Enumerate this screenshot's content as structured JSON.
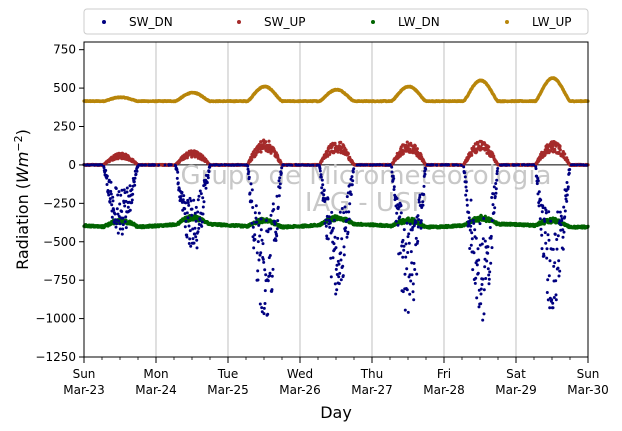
{
  "chart_data": {
    "type": "scatter",
    "title": "",
    "xlabel": "Day",
    "ylabel_main": "Radiation (",
    "ylabel_unit": "Wm",
    "ylabel_exp": "−2",
    "ylabel_close": ")",
    "ylim": [
      -1250,
      800
    ],
    "xlim": [
      0,
      7
    ],
    "y_ticks": [
      750,
      500,
      250,
      0,
      -250,
      -500,
      -750,
      -1000,
      -1250
    ],
    "y_tick_labels": [
      "750",
      "500",
      "250",
      "0",
      "−250",
      "−500",
      "−750",
      "−1000",
      "−1250"
    ],
    "x_ticks": [
      {
        "x": 0,
        "day": "Sun",
        "date": "Mar-23"
      },
      {
        "x": 1,
        "day": "Mon",
        "date": "Mar-24"
      },
      {
        "x": 2,
        "day": "Tue",
        "date": "Mar-25"
      },
      {
        "x": 3,
        "day": "Wed",
        "date": "Mar-26"
      },
      {
        "x": 4,
        "day": "Thu",
        "date": "Mar-27"
      },
      {
        "x": 5,
        "day": "Fri",
        "date": "Mar-28"
      },
      {
        "x": 6,
        "day": "Sat",
        "date": "Mar-29"
      },
      {
        "x": 7,
        "day": "Sun",
        "date": "Mar-30"
      }
    ],
    "grid": "vertical",
    "legend_position": "top",
    "watermark_lines": [
      "Grupo de Micrometeorologia",
      "IAG - USP"
    ],
    "series": [
      {
        "name": "SW_DN",
        "color": "#000080",
        "kind": "shortwave_down",
        "daily_peak": [
          -450,
          -560,
          -1000,
          -840,
          -960,
          -1010,
          -930
        ]
      },
      {
        "name": "SW_UP",
        "color": "#a52a2a",
        "kind": "shortwave_up",
        "daily_peak": [
          75,
          90,
          160,
          150,
          145,
          150,
          150
        ]
      },
      {
        "name": "LW_DN",
        "color": "#006400",
        "kind": "longwave_down",
        "baseline": -395
      },
      {
        "name": "LW_UP",
        "color": "#b8860b",
        "kind": "longwave_up",
        "baseline": 415,
        "daily_peak": [
          440,
          470,
          510,
          490,
          510,
          550,
          565
        ]
      }
    ]
  }
}
